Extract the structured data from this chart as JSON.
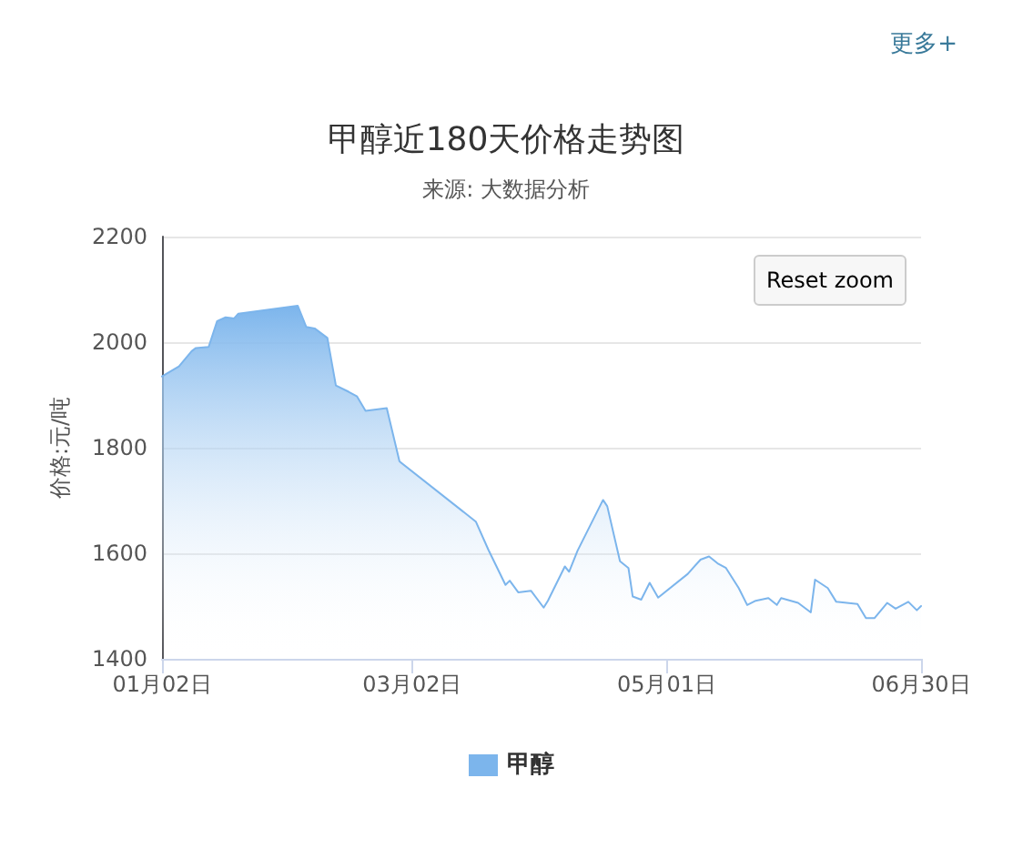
{
  "chart_data": {
    "type": "area",
    "title": "甲醇近180天价格走势图",
    "subtitle": "来源: 大数据分析",
    "ylabel": "价格:元/吨",
    "annotations": [
      "更多+",
      "Reset zoom"
    ],
    "x": [
      "--01-02",
      "--01-06",
      "--01-09",
      "--01-10",
      "--01-13",
      "--01-15",
      "--01-17",
      "--01-19",
      "--01-20",
      "--02-03",
      "--02-05",
      "--02-07",
      "--02-10",
      "--02-12",
      "--02-15",
      "--02-17",
      "--02-19",
      "--02-24",
      "--02-27",
      "--03-17",
      "--03-20",
      "--03-24",
      "--03-25",
      "--03-27",
      "--03-30",
      "--04-02",
      "--04-03",
      "--04-07",
      "--04-08",
      "--04-10",
      "--04-16",
      "--04-17",
      "--04-20",
      "--04-22",
      "--04-23",
      "--04-25",
      "--04-27",
      "--04-29",
      "--05-06",
      "--05-09",
      "--05-11",
      "--05-13",
      "--05-15",
      "--05-18",
      "--05-20",
      "--05-22",
      "--05-25",
      "--05-27",
      "--05-28",
      "--06-01",
      "--06-04",
      "--06-05",
      "--06-08",
      "--06-10",
      "--06-15",
      "--06-17",
      "--06-19",
      "--06-22",
      "--06-24",
      "--06-27",
      "--06-29",
      "--06-30"
    ],
    "series": [
      {
        "name": "甲醇",
        "color": "#7cb5ec",
        "values": [
          1935,
          1954,
          1983,
          1989,
          1991,
          2040,
          2047,
          2045,
          2054,
          2069,
          2029,
          2026,
          2008,
          1918,
          1906,
          1897,
          1870,
          1875,
          1774,
          1660,
          1606,
          1540,
          1548,
          1526,
          1529,
          1497,
          1510,
          1575,
          1565,
          1605,
          1701,
          1689,
          1585,
          1572,
          1518,
          1512,
          1544,
          1516,
          1561,
          1588,
          1594,
          1581,
          1572,
          1534,
          1502,
          1510,
          1515,
          1502,
          1515,
          1506,
          1488,
          1550,
          1534,
          1508,
          1504,
          1477,
          1477,
          1506,
          1495,
          1508,
          1492,
          1500
        ]
      }
    ],
    "xlim": [
      "--01-02",
      "--06-30"
    ],
    "xticks": [
      {
        "value": "--01-02",
        "label": "01月02日"
      },
      {
        "value": "--03-02",
        "label": "03月02日"
      },
      {
        "value": "--05-01",
        "label": "05月01日"
      },
      {
        "value": "--06-30",
        "label": "06月30日"
      }
    ],
    "ylim": [
      1400,
      2200
    ],
    "yticks": [
      1400,
      1600,
      1800,
      2000,
      2200
    ],
    "grid": "y",
    "legend": "bottom",
    "marker": "none",
    "line_style": "solid"
  }
}
